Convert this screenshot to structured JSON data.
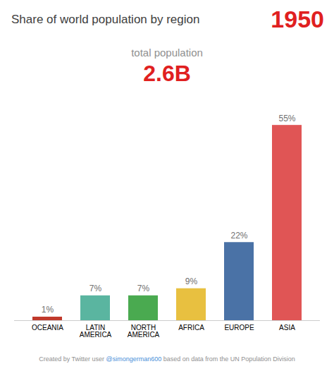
{
  "chart_data": {
    "type": "bar",
    "title": "Share of world population by region",
    "subtitle": "total population",
    "annotations": [
      {
        "text": "1950",
        "color": "#e02020"
      },
      {
        "text": "2.6B",
        "color": "#e02020"
      },
      {
        "text": "Created by Twitter user ",
        "color": "#909090"
      },
      {
        "text": "@simongerman600",
        "color": "#4a90d9"
      },
      {
        "text": " based on data from the UN Population Division",
        "color": "#909090"
      }
    ],
    "categories": [
      "OCEANIA",
      "LATIN\nAMERICA",
      "NORTH\nAMERICA",
      "AFRICA",
      "EUROPE",
      "ASIA"
    ],
    "values": [
      1,
      7,
      7,
      9,
      22,
      55
    ],
    "value_labels": [
      "1%",
      "7%",
      "7%",
      "9%",
      "22%",
      "55%"
    ],
    "colors": [
      "#c0392b",
      "#5ab5a0",
      "#4aaa50",
      "#e8c040",
      "#4a72a6",
      "#e05555"
    ],
    "ylim": [
      0,
      60
    ],
    "data_labels": true,
    "tick_labels": "x",
    "grid": false
  }
}
